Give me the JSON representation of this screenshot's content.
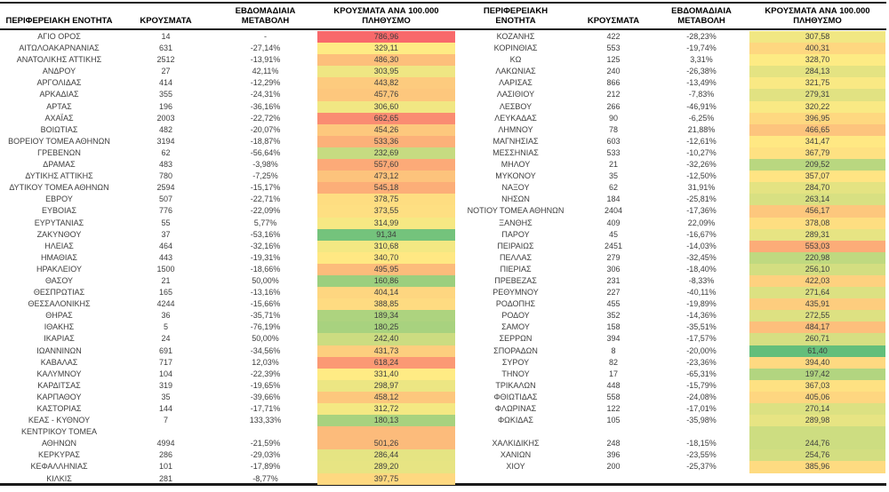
{
  "chart_data": {
    "type": "table",
    "color_scale": {
      "min": 61.4,
      "mid": 331.4,
      "max": 786.96,
      "min_color": "#63BE7B",
      "mid_color": "#FFEB84",
      "max_color": "#F8696B"
    },
    "tables": [
      {
        "headers": {
          "region": "ΠΕΡΙΦΕΡΕΙΑΚΗ ΕΝΟΤΗΤΑ",
          "cases": "ΚΡΟΥΣΜΑΤΑ",
          "change": "ΕΒΔΟΜΑΔΙΑΙΑ\nΜΕΤΑΒΟΛΗ",
          "rate": "ΚΡΟΥΣΜΑΤΑ ΑΝΑ 100.000\nΠΛΗΘΥΣΜΟ"
        },
        "rows": [
          {
            "region": "ΑΓΙΟ ΟΡΟΣ",
            "cases": "14",
            "change": "-",
            "rate": "786,96"
          },
          {
            "region": "ΑΙΤΩΛΟΑΚΑΡΝΑΝΙΑΣ",
            "cases": "631",
            "change": "-27,14%",
            "rate": "329,11"
          },
          {
            "region": "ΑΝΑΤΟΛΙΚΗΣ ΑΤΤΙΚΗΣ",
            "cases": "2512",
            "change": "-13,91%",
            "rate": "486,30"
          },
          {
            "region": "ΑΝΔΡΟΥ",
            "cases": "27",
            "change": "42,11%",
            "rate": "303,95"
          },
          {
            "region": "ΑΡΓΟΛΙΔΑΣ",
            "cases": "414",
            "change": "-12,29%",
            "rate": "443,82"
          },
          {
            "region": "ΑΡΚΑΔΙΑΣ",
            "cases": "355",
            "change": "-24,31%",
            "rate": "457,76"
          },
          {
            "region": "ΑΡΤΑΣ",
            "cases": "196",
            "change": "-36,16%",
            "rate": "306,60"
          },
          {
            "region": "ΑΧΑΪΑΣ",
            "cases": "2003",
            "change": "-22,72%",
            "rate": "662,65"
          },
          {
            "region": "ΒΟΙΩΤΙΑΣ",
            "cases": "482",
            "change": "-20,07%",
            "rate": "454,26"
          },
          {
            "region": "ΒΟΡΕΙΟΥ ΤΟΜΕΑ ΑΘΗΝΩΝ",
            "cases": "3194",
            "change": "-18,87%",
            "rate": "533,36"
          },
          {
            "region": "ΓΡΕΒΕΝΩΝ",
            "cases": "62",
            "change": "-56,64%",
            "rate": "232,69"
          },
          {
            "region": "ΔΡΑΜΑΣ",
            "cases": "483",
            "change": "-3,98%",
            "rate": "557,60"
          },
          {
            "region": "ΔΥΤΙΚΗΣ ΑΤΤΙΚΗΣ",
            "cases": "780",
            "change": "-7,25%",
            "rate": "473,12"
          },
          {
            "region": "ΔΥΤΙΚΟΥ ΤΟΜΕΑ ΑΘΗΝΩΝ",
            "cases": "2594",
            "change": "-15,17%",
            "rate": "545,18"
          },
          {
            "region": "ΕΒΡΟΥ",
            "cases": "507",
            "change": "-22,71%",
            "rate": "378,75"
          },
          {
            "region": "ΕΥΒΟΙΑΣ",
            "cases": "776",
            "change": "-22,09%",
            "rate": "373,55"
          },
          {
            "region": "ΕΥΡΥΤΑΝΙΑΣ",
            "cases": "55",
            "change": "5,77%",
            "rate": "314,99"
          },
          {
            "region": "ΖΑΚΥΝΘΟΥ",
            "cases": "37",
            "change": "-53,16%",
            "rate": "91,34"
          },
          {
            "region": "ΗΛΕΙΑΣ",
            "cases": "464",
            "change": "-32,16%",
            "rate": "310,68"
          },
          {
            "region": "ΗΜΑΘΙΑΣ",
            "cases": "443",
            "change": "-19,31%",
            "rate": "340,70"
          },
          {
            "region": "ΗΡΑΚΛΕΙΟΥ",
            "cases": "1500",
            "change": "-18,66%",
            "rate": "495,95"
          },
          {
            "region": "ΘΑΣΟΥ",
            "cases": "21",
            "change": "50,00%",
            "rate": "160,86"
          },
          {
            "region": "ΘΕΣΠΡΩΤΙΑΣ",
            "cases": "165",
            "change": "-13,16%",
            "rate": "404,14"
          },
          {
            "region": "ΘΕΣΣΑΛΟΝΙΚΗΣ",
            "cases": "4244",
            "change": "-15,66%",
            "rate": "388,85"
          },
          {
            "region": "ΘΗΡΑΣ",
            "cases": "36",
            "change": "-35,71%",
            "rate": "189,34"
          },
          {
            "region": "ΙΘΑΚΗΣ",
            "cases": "5",
            "change": "-76,19%",
            "rate": "180,25"
          },
          {
            "region": "ΙΚΑΡΙΑΣ",
            "cases": "24",
            "change": "50,00%",
            "rate": "242,40"
          },
          {
            "region": "ΙΩΑΝΝΙΝΩΝ",
            "cases": "691",
            "change": "-34,56%",
            "rate": "431,73"
          },
          {
            "region": "ΚΑΒΑΛΑΣ",
            "cases": "717",
            "change": "12,03%",
            "rate": "618,24"
          },
          {
            "region": "ΚΑΛΥΜΝΟΥ",
            "cases": "104",
            "change": "-22,39%",
            "rate": "331,40"
          },
          {
            "region": "ΚΑΡΔΙΤΣΑΣ",
            "cases": "319",
            "change": "-19,65%",
            "rate": "298,97"
          },
          {
            "region": "ΚΑΡΠΑΘΟΥ",
            "cases": "35",
            "change": "-39,66%",
            "rate": "458,12"
          },
          {
            "region": "ΚΑΣΤΟΡΙΑΣ",
            "cases": "144",
            "change": "-17,71%",
            "rate": "312,72"
          },
          {
            "region": "ΚΕΑΣ - ΚΥΘΝΟΥ",
            "cases": "7",
            "change": "133,33%",
            "rate": "180,13"
          },
          {
            "region": "ΚΕΝΤΡΙΚΟΥ ΤΟΜΕΑ",
            "cases": "",
            "change": "",
            "rate": "",
            "rate_fill": "501,26"
          },
          {
            "region": "ΑΘΗΝΩΝ",
            "cases": "4994",
            "change": "-21,59%",
            "rate": "501,26"
          },
          {
            "region": "ΚΕΡΚΥΡΑΣ",
            "cases": "286",
            "change": "-29,03%",
            "rate": "286,44"
          },
          {
            "region": "ΚΕΦΑΛΛΗΝΙΑΣ",
            "cases": "101",
            "change": "-17,89%",
            "rate": "289,20"
          },
          {
            "region": "ΚΙΛΚΙΣ",
            "cases": "281",
            "change": "-8,77%",
            "rate": "397,75"
          }
        ]
      },
      {
        "headers": {
          "region": "ΠΕΡΙΦΕΡΕΙΑΚΗ\nΕΝΟΤΗΤΑ",
          "cases": "ΚΡΟΥΣΜΑΤΑ",
          "change": "ΕΒΔΟΜΑΔΙΑΙΑ\nΜΕΤΑΒΟΛΗ",
          "rate": "ΚΡΟΥΣΜΑΤΑ ΑΝΑ 100.000\nΠΛΗΘΥΣΜΟ"
        },
        "rows": [
          {
            "region": "ΚΟΖΑΝΗΣ",
            "cases": "422",
            "change": "-28,23%",
            "rate": "307,58"
          },
          {
            "region": "ΚΟΡΙΝΘΙΑΣ",
            "cases": "553",
            "change": "-19,74%",
            "rate": "400,31"
          },
          {
            "region": "ΚΩ",
            "cases": "125",
            "change": "3,31%",
            "rate": "328,70"
          },
          {
            "region": "ΛΑΚΩΝΙΑΣ",
            "cases": "240",
            "change": "-26,38%",
            "rate": "284,13"
          },
          {
            "region": "ΛΑΡΙΣΑΣ",
            "cases": "866",
            "change": "-13,49%",
            "rate": "321,75"
          },
          {
            "region": "ΛΑΣΙΘΙΟΥ",
            "cases": "212",
            "change": "-7,83%",
            "rate": "279,31"
          },
          {
            "region": "ΛΕΣΒΟΥ",
            "cases": "266",
            "change": "-46,91%",
            "rate": "320,22"
          },
          {
            "region": "ΛΕΥΚΑΔΑΣ",
            "cases": "90",
            "change": "-6,25%",
            "rate": "396,95"
          },
          {
            "region": "ΛΗΜΝΟΥ",
            "cases": "78",
            "change": "21,88%",
            "rate": "466,65"
          },
          {
            "region": "ΜΑΓΝΗΣΙΑΣ",
            "cases": "603",
            "change": "-12,61%",
            "rate": "341,47"
          },
          {
            "region": "ΜΕΣΣΗΝΙΑΣ",
            "cases": "533",
            "change": "-10,27%",
            "rate": "367,79"
          },
          {
            "region": "ΜΗΛΟΥ",
            "cases": "21",
            "change": "-32,26%",
            "rate": "209,52"
          },
          {
            "region": "ΜΥΚΟΝΟΥ",
            "cases": "35",
            "change": "-12,50%",
            "rate": "357,07"
          },
          {
            "region": "ΝΑΞΟΥ",
            "cases": "62",
            "change": "31,91%",
            "rate": "284,70"
          },
          {
            "region": "ΝΗΣΩΝ",
            "cases": "184",
            "change": "-25,81%",
            "rate": "263,14"
          },
          {
            "region": "ΝΟΤΙΟΥ ΤΟΜΕΑ ΑΘΗΝΩΝ",
            "cases": "2404",
            "change": "-17,36%",
            "rate": "456,17"
          },
          {
            "region": "ΞΑΝΘΗΣ",
            "cases": "409",
            "change": "22,09%",
            "rate": "378,08"
          },
          {
            "region": "ΠΑΡΟΥ",
            "cases": "45",
            "change": "-16,67%",
            "rate": "289,31"
          },
          {
            "region": "ΠΕΙΡΑΙΩΣ",
            "cases": "2451",
            "change": "-14,03%",
            "rate": "553,03"
          },
          {
            "region": "ΠΕΛΛΑΣ",
            "cases": "279",
            "change": "-32,45%",
            "rate": "220,98"
          },
          {
            "region": "ΠΙΕΡΙΑΣ",
            "cases": "306",
            "change": "-18,40%",
            "rate": "256,10"
          },
          {
            "region": "ΠΡΕΒΕΖΑΣ",
            "cases": "231",
            "change": "-8,33%",
            "rate": "422,03"
          },
          {
            "region": "ΡΕΘΥΜΝΟΥ",
            "cases": "227",
            "change": "-40,11%",
            "rate": "271,64"
          },
          {
            "region": "ΡΟΔΟΠΗΣ",
            "cases": "455",
            "change": "-19,89%",
            "rate": "435,91"
          },
          {
            "region": "ΡΟΔΟΥ",
            "cases": "352",
            "change": "-14,36%",
            "rate": "272,55"
          },
          {
            "region": "ΣΑΜΟΥ",
            "cases": "158",
            "change": "-35,51%",
            "rate": "484,17"
          },
          {
            "region": "ΣΕΡΡΩΝ",
            "cases": "394",
            "change": "-17,57%",
            "rate": "260,71"
          },
          {
            "region": "ΣΠΟΡΑΔΩΝ",
            "cases": "8",
            "change": "-20,00%",
            "rate": "61,40"
          },
          {
            "region": "ΣΥΡΟΥ",
            "cases": "82",
            "change": "-23,36%",
            "rate": "394,40"
          },
          {
            "region": "ΤΗΝΟΥ",
            "cases": "17",
            "change": "-65,31%",
            "rate": "197,42"
          },
          {
            "region": "ΤΡΙΚΑΛΩΝ",
            "cases": "448",
            "change": "-15,79%",
            "rate": "367,03"
          },
          {
            "region": "ΦΘΙΩΤΙΔΑΣ",
            "cases": "558",
            "change": "-24,08%",
            "rate": "405,06"
          },
          {
            "region": "ΦΛΩΡΙΝΑΣ",
            "cases": "122",
            "change": "-17,01%",
            "rate": "270,14"
          },
          {
            "region": "ΦΩΚΙΔΑΣ",
            "cases": "105",
            "change": "-35,98%",
            "rate": "289,98"
          },
          {
            "region": "",
            "cases": "",
            "change": "",
            "rate": "",
            "rate_fill": "244,76"
          },
          {
            "region": "ΧΑΛΚΙΔΙΚΗΣ",
            "cases": "248",
            "change": "-18,15%",
            "rate": "244,76"
          },
          {
            "region": "ΧΑΝΙΩΝ",
            "cases": "396",
            "change": "-23,55%",
            "rate": "254,76"
          },
          {
            "region": "ΧΙΟΥ",
            "cases": "200",
            "change": "-25,37%",
            "rate": "385,96"
          },
          {
            "region": "",
            "cases": "",
            "change": "",
            "rate": ""
          }
        ]
      }
    ]
  }
}
